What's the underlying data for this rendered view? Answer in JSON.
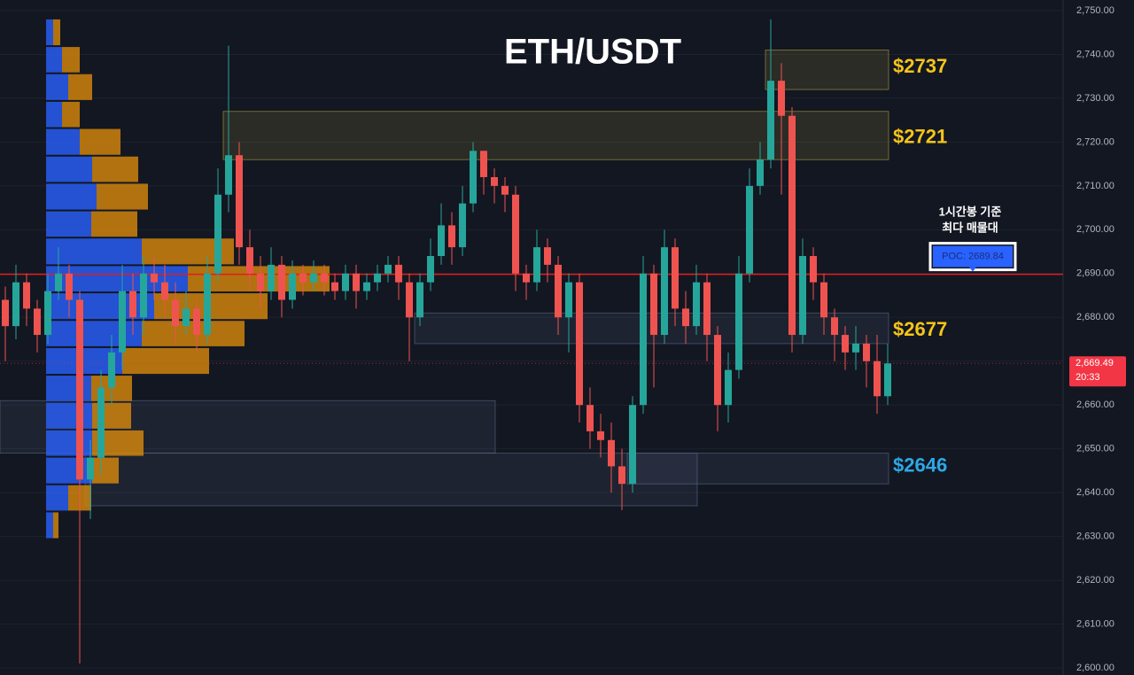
{
  "chart_data": {
    "type": "candlestick",
    "title": "ETH/USDT",
    "ylim": [
      2600,
      2750
    ],
    "yticks": [
      {
        "value": 2600,
        "label": "2,600.00"
      },
      {
        "value": 2610,
        "label": "2,610.00"
      },
      {
        "value": 2620,
        "label": "2,620.00"
      },
      {
        "value": 2630,
        "label": "2,630.00"
      },
      {
        "value": 2640,
        "label": "2,640.00"
      },
      {
        "value": 2650,
        "label": "2,650.00"
      },
      {
        "value": 2660,
        "label": "2,660.00"
      },
      {
        "value": 2670,
        "label": "2,670.00"
      },
      {
        "value": 2680,
        "label": "2,680.00"
      },
      {
        "value": 2690,
        "label": "2,690.00"
      },
      {
        "value": 2700,
        "label": "2,700.00"
      },
      {
        "value": 2710,
        "label": "2,710.00"
      },
      {
        "value": 2720,
        "label": "2,720.00"
      },
      {
        "value": 2730,
        "label": "2,730.00"
      },
      {
        "value": 2740,
        "label": "2,740.00"
      },
      {
        "value": 2750,
        "label": "2,750.00"
      }
    ],
    "grid": true,
    "up_color": "#26a69a",
    "down_color": "#ef5350",
    "open": [
      2684,
      2678,
      2688,
      2682,
      2676,
      2686,
      2690,
      2684,
      2643,
      2648,
      2664,
      2672,
      2686,
      2680,
      2690,
      2688,
      2684,
      2678,
      2682,
      2676,
      2690,
      2708,
      2717,
      2696,
      2690,
      2686,
      2692,
      2684,
      2690,
      2688,
      2690,
      2688,
      2686,
      2690,
      2686,
      2688,
      2690,
      2692,
      2688,
      2680,
      2688,
      2694,
      2701,
      2696,
      2706,
      2718,
      2712,
      2710,
      2708,
      2690,
      2688,
      2696,
      2692,
      2680,
      2688,
      2660,
      2654,
      2652,
      2646,
      2642,
      2660,
      2690,
      2676,
      2696,
      2682,
      2678,
      2688,
      2676,
      2660,
      2668,
      2690,
      2710,
      2716,
      2734,
      2726,
      2676,
      2694,
      2688,
      2680,
      2676,
      2672,
      2674,
      2670,
      2662
    ],
    "high": [
      2687,
      2692,
      2690,
      2684,
      2690,
      2696,
      2692,
      2686,
      2652,
      2668,
      2676,
      2692,
      2690,
      2694,
      2694,
      2692,
      2688,
      2686,
      2684,
      2694,
      2714,
      2742,
      2720,
      2700,
      2694,
      2696,
      2694,
      2693,
      2692,
      2693,
      2692,
      2690,
      2692,
      2692,
      2690,
      2692,
      2694,
      2694,
      2690,
      2690,
      2698,
      2706,
      2704,
      2710,
      2720,
      2718,
      2714,
      2712,
      2710,
      2692,
      2700,
      2698,
      2694,
      2690,
      2690,
      2664,
      2658,
      2656,
      2650,
      2662,
      2694,
      2692,
      2700,
      2698,
      2686,
      2692,
      2690,
      2678,
      2672,
      2694,
      2714,
      2720,
      2748,
      2738,
      2728,
      2698,
      2696,
      2690,
      2682,
      2678,
      2678,
      2676,
      2676,
      2674
    ],
    "low": [
      2670,
      2675,
      2678,
      2672,
      2674,
      2684,
      2680,
      2601,
      2634,
      2644,
      2660,
      2668,
      2676,
      2676,
      2684,
      2680,
      2674,
      2676,
      2672,
      2674,
      2688,
      2704,
      2692,
      2686,
      2682,
      2684,
      2680,
      2682,
      2685,
      2686,
      2685,
      2684,
      2684,
      2682,
      2684,
      2686,
      2688,
      2684,
      2670,
      2678,
      2686,
      2692,
      2692,
      2694,
      2704,
      2708,
      2706,
      2704,
      2686,
      2684,
      2686,
      2688,
      2676,
      2672,
      2656,
      2650,
      2648,
      2640,
      2636,
      2640,
      2658,
      2664,
      2674,
      2678,
      2674,
      2676,
      2670,
      2654,
      2656,
      2666,
      2688,
      2708,
      2714,
      2708,
      2672,
      2674,
      2684,
      2676,
      2670,
      2668,
      2668,
      2664,
      2658,
      2660
    ],
    "close": [
      2678,
      2688,
      2682,
      2676,
      2686,
      2690,
      2684,
      2643,
      2648,
      2664,
      2672,
      2686,
      2680,
      2690,
      2688,
      2684,
      2678,
      2682,
      2676,
      2690,
      2708,
      2717,
      2696,
      2690,
      2686,
      2692,
      2684,
      2690,
      2688,
      2690,
      2688,
      2686,
      2690,
      2686,
      2688,
      2690,
      2692,
      2688,
      2680,
      2688,
      2694,
      2701,
      2696,
      2706,
      2718,
      2712,
      2710,
      2708,
      2690,
      2688,
      2696,
      2692,
      2680,
      2688,
      2660,
      2654,
      2652,
      2646,
      2642,
      2660,
      2690,
      2676,
      2696,
      2682,
      2678,
      2688,
      2676,
      2660,
      2668,
      2690,
      2710,
      2716,
      2734,
      2726,
      2676,
      2694,
      2688,
      2680,
      2676,
      2672,
      2674,
      2670,
      2662,
      2669.49
    ],
    "volume_profile": {
      "bins": [
        2748.2,
        2741.9,
        2735.7,
        2729.4,
        2723.2,
        2716.9,
        2710.7,
        2704.4,
        2698.2,
        2691.9,
        2685.7,
        2679.4,
        2673.2,
        2666.9,
        2660.7,
        2654.4,
        2648.2,
        2641.9,
        2635.7,
        2629.4
      ],
      "buy": [
        8,
        18,
        25,
        18,
        38,
        52,
        57,
        51,
        108,
        160,
        122,
        108,
        86,
        51,
        52,
        52,
        52,
        25,
        8
      ],
      "sell": [
        8,
        20,
        27,
        20,
        46,
        52,
        58,
        52,
        104,
        160,
        128,
        116,
        98,
        46,
        44,
        58,
        30,
        26,
        6
      ],
      "buy_color": "#2962ff",
      "sell_color": "#d98a0b"
    },
    "zones": [
      {
        "top": 2727,
        "bottom": 2716,
        "from": 21,
        "to": 83,
        "color": "#b5a642"
      },
      {
        "top": 2741,
        "bottom": 2732,
        "from": 72,
        "to": 83,
        "color": "#b5a642"
      },
      {
        "top": 2681,
        "bottom": 2674,
        "from": 39,
        "to": 83,
        "color": "#5b6b8c"
      },
      {
        "top": 2661,
        "bottom": 2649,
        "from": 0,
        "to": 46,
        "color": "#5b6b8c"
      },
      {
        "top": 2649,
        "bottom": 2637,
        "from": 8,
        "to": 65,
        "color": "#5b6b8c"
      },
      {
        "top": 2649,
        "bottom": 2642,
        "from": 59,
        "to": 83,
        "color": "#5b6b8c"
      }
    ],
    "level_labels": [
      {
        "value": 2737,
        "label": "$2737",
        "color": "#f5c518"
      },
      {
        "value": 2721,
        "label": "$2721",
        "color": "#f5c518"
      },
      {
        "value": 2677,
        "label": "$2677",
        "color": "#f5c518"
      },
      {
        "value": 2646,
        "label": "$2646",
        "color": "#2ea8e6"
      }
    ],
    "poc": {
      "value": 2689.84,
      "label": "POC: 2689.84",
      "color": "#e01e1e"
    },
    "annotation": [
      "1시간봉 기준",
      "최다 매물대"
    ],
    "last_price": {
      "value": 2669.49,
      "label": "2,669.49",
      "countdown": "20:33",
      "color": "#f23645"
    }
  }
}
